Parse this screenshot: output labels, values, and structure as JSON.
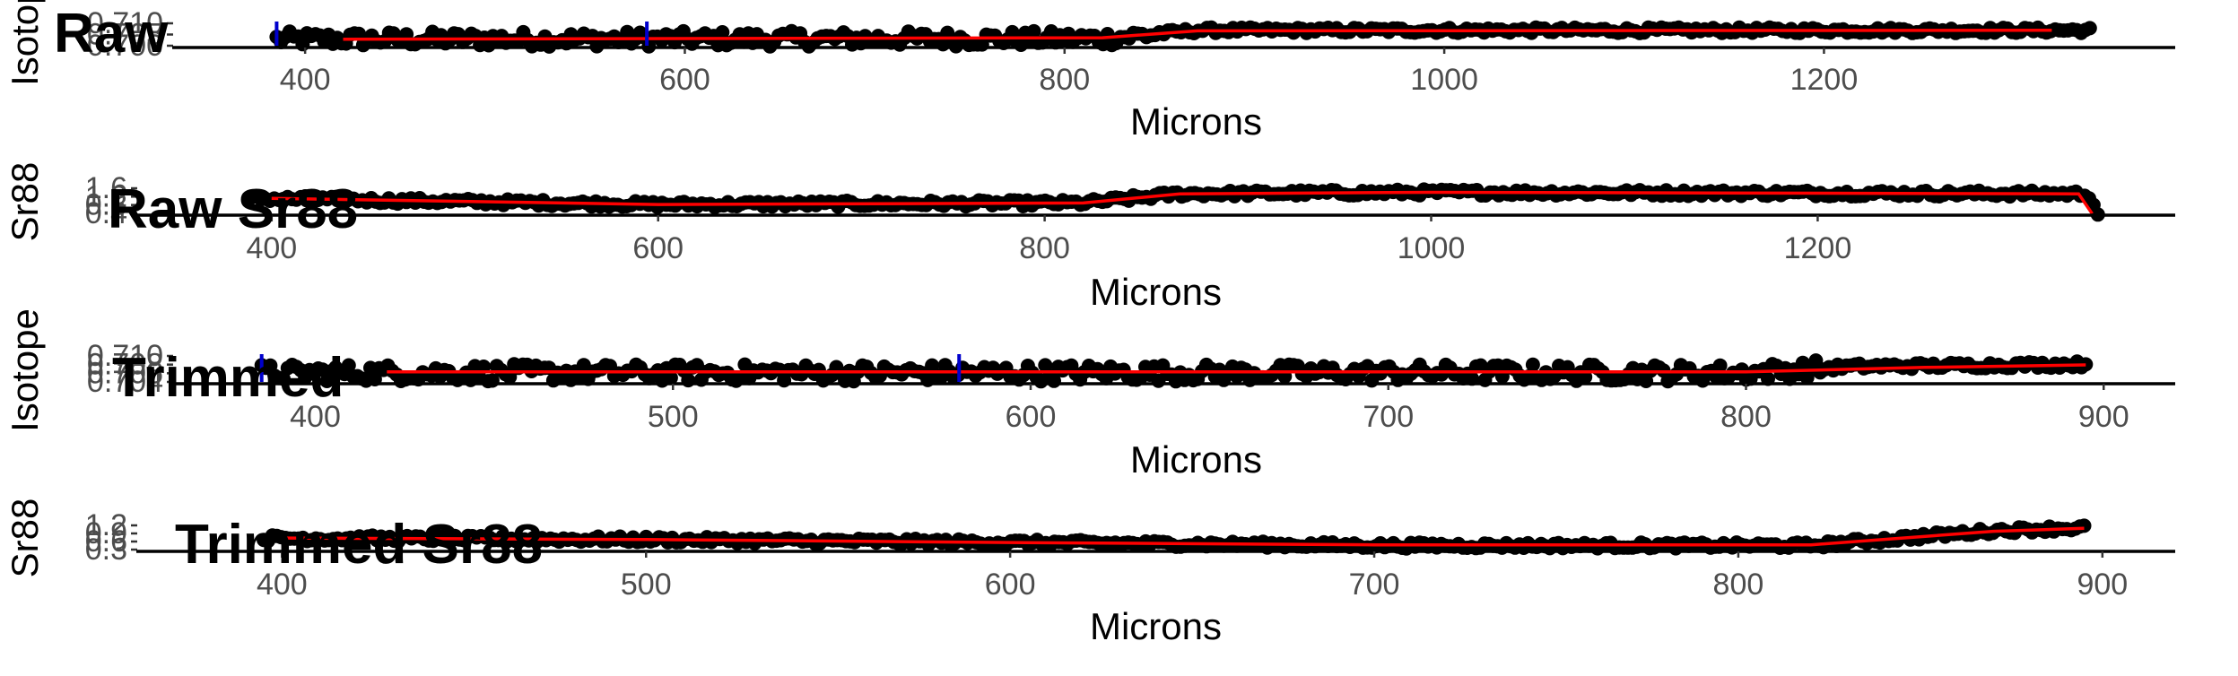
{
  "colors": {
    "points": "#000000",
    "fit": "#ff0000",
    "marker": "#0000cc",
    "axis": "#000000",
    "tick_text": "#4d4d4d"
  },
  "chart_data": [
    {
      "type": "scatter",
      "title": "Raw",
      "xlabel": "Microns",
      "ylabel": "Isotope",
      "xlim": [
        330,
        1385
      ],
      "x_ticks": [
        "400",
        "600",
        "800",
        "1000",
        "1200"
      ],
      "y_tick_labels": [
        "0.710",
        "0.705",
        "0.700"
      ],
      "x_range": [
        385,
        1340
      ],
      "points_level": [
        [
          385,
          0.3
        ],
        [
          820,
          0.32
        ],
        [
          870,
          0.62
        ],
        [
          1340,
          0.62
        ]
      ],
      "fit_line": [
        [
          420,
          0.3
        ],
        [
          820,
          0.35
        ],
        [
          870,
          0.6
        ],
        [
          1320,
          0.62
        ]
      ],
      "vertical_markers": [
        385,
        580
      ]
    },
    {
      "type": "scatter",
      "title": "Raw Sr88",
      "xlabel": "Microns",
      "ylabel": "Sr88",
      "xlim": [
        330,
        1385
      ],
      "x_ticks": [
        "400",
        "600",
        "800",
        "1000",
        "1200"
      ],
      "y_tick_labels": [
        "1.6",
        "1.2",
        "0.8",
        "0.4"
      ],
      "x_range": [
        390,
        1345
      ],
      "points_level": [
        [
          390,
          0.55
        ],
        [
          600,
          0.35
        ],
        [
          820,
          0.4
        ],
        [
          870,
          0.7
        ],
        [
          1000,
          0.75
        ],
        [
          1340,
          0.7
        ],
        [
          1345,
          0.05
        ]
      ],
      "fit_line": [
        [
          400,
          0.55
        ],
        [
          600,
          0.35
        ],
        [
          820,
          0.4
        ],
        [
          870,
          0.7
        ],
        [
          1000,
          0.75
        ],
        [
          1335,
          0.7
        ],
        [
          1342,
          0.05
        ]
      ],
      "vertical_markers": []
    },
    {
      "type": "scatter",
      "title": "Trimmed",
      "xlabel": "Microns",
      "ylabel": "Isotope",
      "xlim": [
        360,
        920
      ],
      "x_ticks": [
        "400",
        "500",
        "600",
        "700",
        "800",
        "900"
      ],
      "y_tick_labels": [
        "0.710",
        "0.708",
        "0.706",
        "0.704"
      ],
      "x_range": [
        385,
        895
      ],
      "points_level": [
        [
          385,
          0.35
        ],
        [
          800,
          0.35
        ],
        [
          830,
          0.55
        ],
        [
          895,
          0.62
        ]
      ],
      "fit_line": [
        [
          420,
          0.38
        ],
        [
          800,
          0.38
        ],
        [
          850,
          0.52
        ],
        [
          895,
          0.6
        ]
      ],
      "vertical_markers": [
        385,
        580
      ]
    },
    {
      "type": "scatter",
      "title": "Trimmed Sr88",
      "xlabel": "Microns",
      "ylabel": "Sr88",
      "xlim": [
        360,
        920
      ],
      "x_ticks": [
        "400",
        "500",
        "600",
        "700",
        "800",
        "900"
      ],
      "y_tick_labels": [
        "1.2",
        "0.9",
        "0.6",
        "0.3"
      ],
      "x_range": [
        395,
        895
      ],
      "points_level": [
        [
          395,
          0.45
        ],
        [
          500,
          0.4
        ],
        [
          600,
          0.3
        ],
        [
          700,
          0.2
        ],
        [
          820,
          0.2
        ],
        [
          870,
          0.7
        ],
        [
          895,
          0.8
        ]
      ],
      "fit_line": [
        [
          400,
          0.45
        ],
        [
          500,
          0.4
        ],
        [
          600,
          0.3
        ],
        [
          700,
          0.22
        ],
        [
          820,
          0.22
        ],
        [
          870,
          0.68
        ],
        [
          895,
          0.78
        ]
      ],
      "vertical_markers": []
    }
  ]
}
